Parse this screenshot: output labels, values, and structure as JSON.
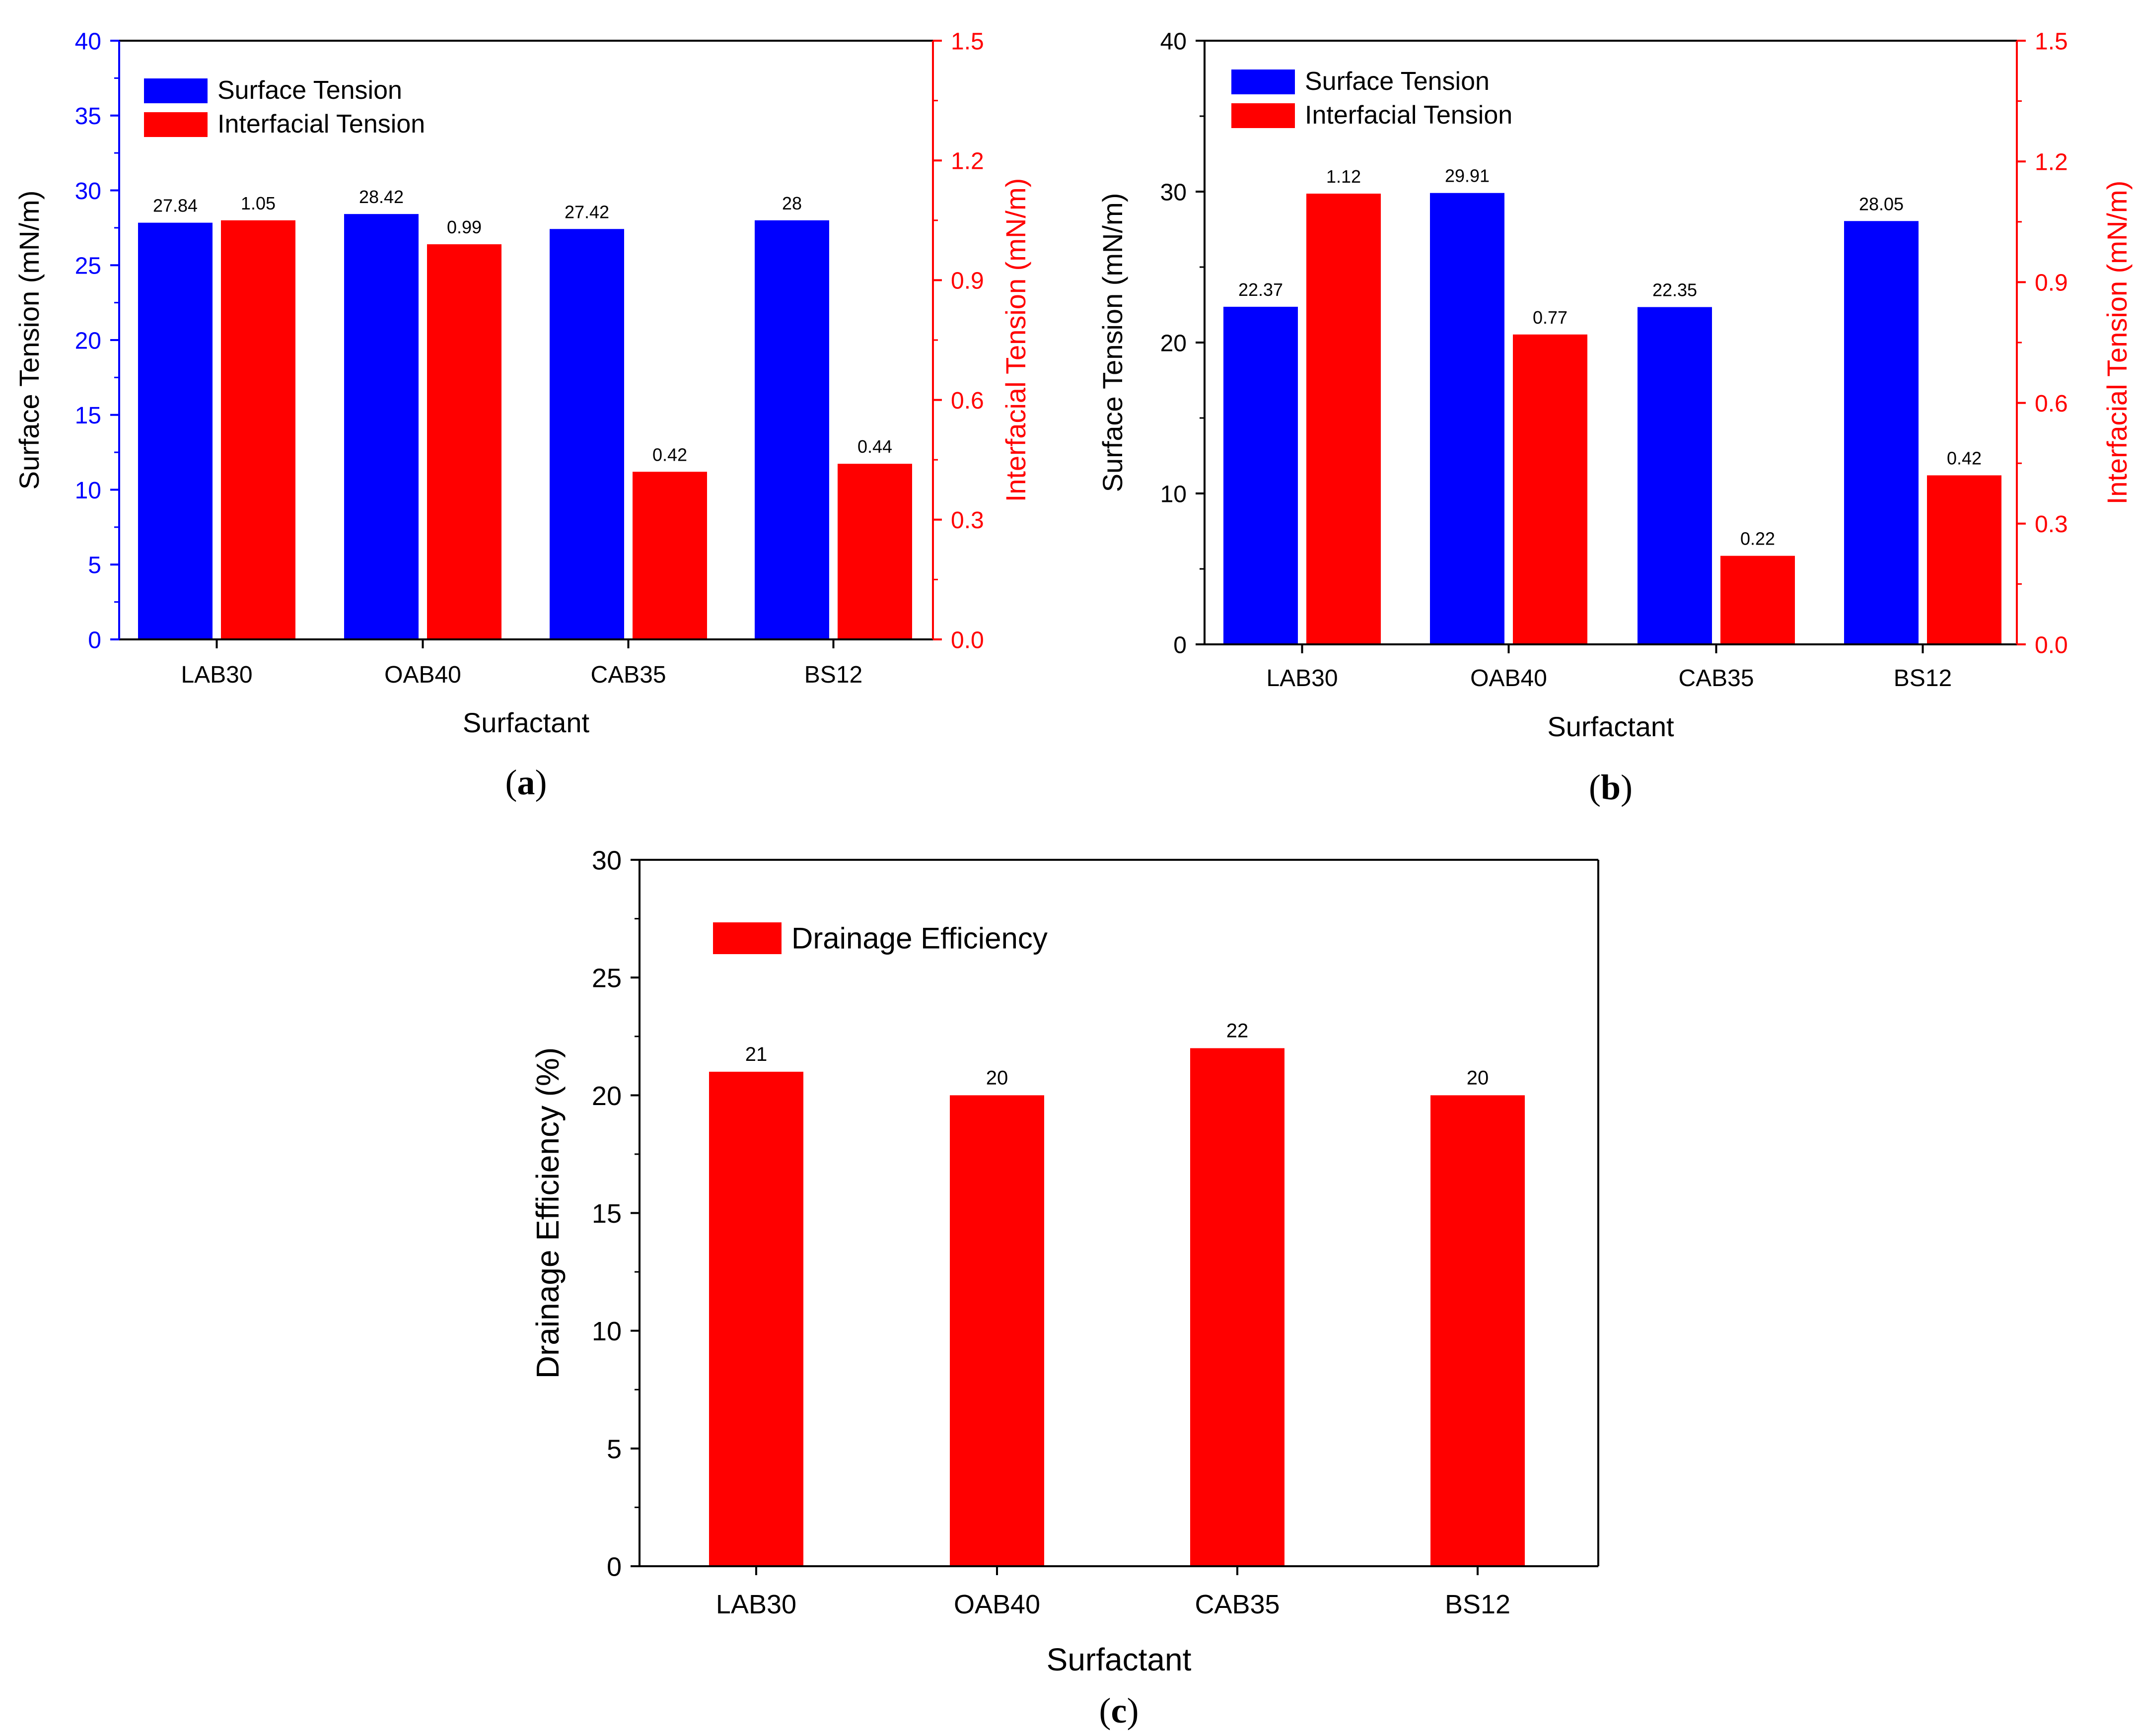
{
  "chart_data": [
    {
      "panel": "a",
      "panel_label": "a",
      "type": "bar",
      "xlabel": "Surfactant",
      "ylabel_left": "Surface Tension (mN/m)",
      "ylabel_right": "Interfacial Tension (mN/m)",
      "ylim_left": [
        0,
        40
      ],
      "ylim_right": [
        0,
        1.5
      ],
      "yticks_left": [
        "0",
        "5",
        "10",
        "15",
        "20",
        "25",
        "30",
        "35",
        "40"
      ],
      "yticks_right": [
        "0.0",
        "0.3",
        "0.6",
        "0.9",
        "1.2",
        "1.5"
      ],
      "categories": [
        "LAB30",
        "OAB40",
        "CAB35",
        "BS12"
      ],
      "series": [
        {
          "name": "Surface Tension",
          "axis": "left",
          "color": "#0000FF",
          "values": [
            27.84,
            28.42,
            27.42,
            28
          ],
          "labels": [
            "27.84",
            "28.42",
            "27.42",
            "28"
          ]
        },
        {
          "name": "Interfacial Tension",
          "axis": "right",
          "color": "#FF0000",
          "values": [
            1.05,
            0.99,
            0.42,
            0.44
          ],
          "labels": [
            "1.05",
            "0.99",
            "0.42",
            "0.44"
          ]
        }
      ],
      "left_axis_color": "#0000FF",
      "right_axis_color": "#FF0000",
      "legend_position": "top-left"
    },
    {
      "panel": "b",
      "panel_label": "b",
      "type": "bar",
      "xlabel": "Surfactant",
      "ylabel_left": "Surface Tension (mN/m)",
      "ylabel_right": "Interfacial Tension (mN/m)",
      "ylim_left": [
        0,
        40
      ],
      "ylim_right": [
        0,
        1.5
      ],
      "yticks_left": [
        "0",
        "10",
        "20",
        "30",
        "40"
      ],
      "yticks_right": [
        "0.0",
        "0.3",
        "0.6",
        "0.9",
        "1.2",
        "1.5"
      ],
      "categories": [
        "LAB30",
        "OAB40",
        "CAB35",
        "BS12"
      ],
      "series": [
        {
          "name": "Surface Tension",
          "axis": "left",
          "color": "#0000FF",
          "values": [
            22.37,
            29.91,
            22.35,
            28.05
          ],
          "labels": [
            "22.37",
            "29.91",
            "22.35",
            "28.05"
          ]
        },
        {
          "name": "Interfacial Tension",
          "axis": "right",
          "color": "#FF0000",
          "values": [
            1.12,
            0.77,
            0.22,
            0.42
          ],
          "labels": [
            "1.12",
            "0.77",
            "0.22",
            "0.42"
          ]
        }
      ],
      "left_axis_color": "#000000",
      "right_axis_color": "#FF0000",
      "legend_position": "top-left"
    },
    {
      "panel": "c",
      "panel_label": "c",
      "type": "bar",
      "xlabel": "Surfactant",
      "ylabel_left": "Drainage Efficiency (%)",
      "ylim_left": [
        0,
        30
      ],
      "yticks_left": [
        "0",
        "5",
        "10",
        "15",
        "20",
        "25",
        "30"
      ],
      "categories": [
        "LAB30",
        "OAB40",
        "CAB35",
        "BS12"
      ],
      "series": [
        {
          "name": "Drainage Efficiency",
          "axis": "left",
          "color": "#FF0000",
          "values": [
            21,
            20,
            22,
            20
          ],
          "labels": [
            "21",
            "20",
            "22",
            "20"
          ]
        }
      ],
      "left_axis_color": "#000000",
      "legend_position": "top-left"
    }
  ]
}
